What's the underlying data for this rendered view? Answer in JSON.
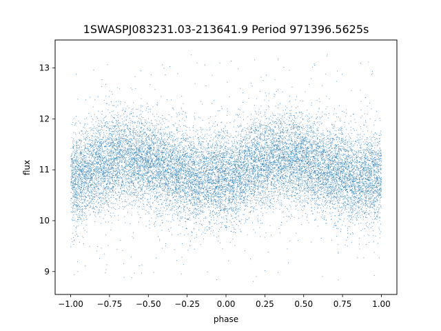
{
  "chart_data": {
    "type": "scatter",
    "title": "1SWASPJ083231.03-213641.9 Period 971396.5625s",
    "xlabel": "phase",
    "ylabel": "flux",
    "xlim": [
      -1.1,
      1.1
    ],
    "ylim": [
      8.55,
      13.55
    ],
    "x_ticks": [
      -1.0,
      -0.75,
      -0.5,
      -0.25,
      0.0,
      0.25,
      0.5,
      0.75,
      1.0
    ],
    "x_tick_labels": [
      "−1.00",
      "−0.75",
      "−0.50",
      "−0.25",
      "0.00",
      "0.25",
      "0.50",
      "0.75",
      "1.00"
    ],
    "y_ticks": [
      9,
      10,
      11,
      12,
      13
    ],
    "y_tick_labels": [
      "9",
      "10",
      "11",
      "12",
      "13"
    ],
    "grid": false,
    "legend": "none",
    "marker_color": "#1f77b4",
    "series": [
      {
        "x_range": [
          -1.0,
          1.0
        ],
        "mean_flux": 10.95,
        "folded_shape": [
          [
            0.0,
            10.85
          ],
          [
            0.05,
            10.8
          ],
          [
            0.1,
            10.95
          ],
          [
            0.15,
            11.05
          ],
          [
            0.2,
            11.1
          ],
          [
            0.25,
            11.15
          ],
          [
            0.3,
            11.2
          ],
          [
            0.35,
            11.25
          ],
          [
            0.4,
            11.2
          ],
          [
            0.45,
            11.2
          ],
          [
            0.5,
            11.15
          ],
          [
            0.55,
            11.1
          ],
          [
            0.6,
            11.05
          ],
          [
            0.65,
            11.0
          ],
          [
            0.7,
            10.95
          ],
          [
            0.75,
            10.9
          ],
          [
            0.8,
            10.85
          ],
          [
            0.85,
            10.85
          ],
          [
            0.9,
            10.85
          ],
          [
            0.95,
            10.85
          ],
          [
            1.0,
            10.85
          ]
        ],
        "scatter_sigma": 0.45,
        "outlier_range": [
          8.8,
          13.3
        ],
        "n_points_shown": 16000
      }
    ]
  }
}
